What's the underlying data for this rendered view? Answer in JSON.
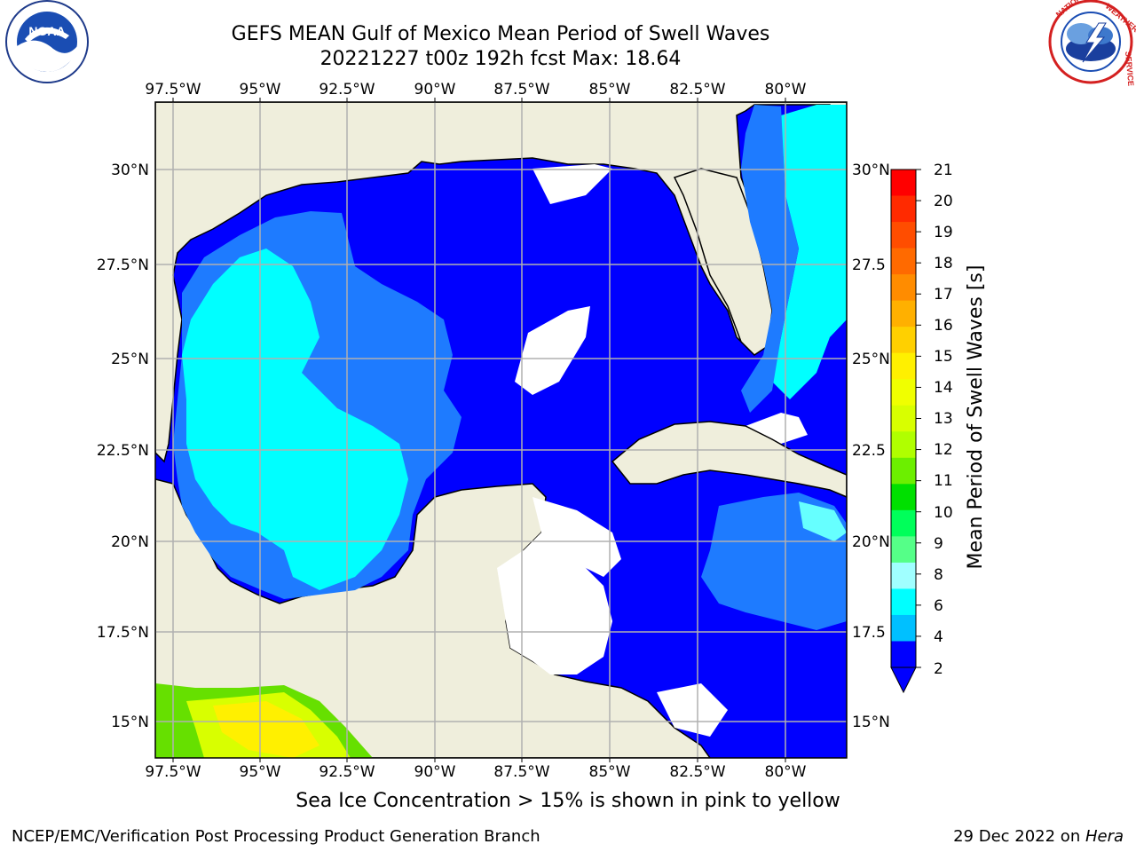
{
  "title": {
    "line1": "GEFS MEAN Gulf of Mexico Mean Period of Swell Waves",
    "line2": "20221227 t00z 192h fcst   Max: 18.64"
  },
  "logos": {
    "noaa_text": "NOAA",
    "noaa_ring": "NATIONAL OCEANIC AND ATMOSPHERIC ADMINISTRATION · U.S. DEPARTMENT OF COMMERCE",
    "nws_ring": "NATIONAL WEATHER SERVICE"
  },
  "axes": {
    "lon_labels": [
      "97.5°W",
      "95°W",
      "92.5°W",
      "90°W",
      "87.5°W",
      "85°W",
      "82.5°W",
      "80°W"
    ],
    "lat_labels_left": [
      "30°N",
      "27.5°N",
      "25°N",
      "22.5°N",
      "20°N",
      "17.5°N",
      "15°N"
    ],
    "lat_labels_right": [
      "30°N",
      "27.5",
      "25°N",
      "22.5",
      "20°N",
      "17.5",
      "15°N"
    ]
  },
  "colorbar": {
    "label": "Mean Period of Swell Waves [s]",
    "ticks": [
      "21",
      "20",
      "19",
      "18",
      "17",
      "16",
      "15",
      "14",
      "13",
      "12",
      "11",
      "10",
      "9",
      "8",
      "6",
      "4",
      "2"
    ],
    "colors": [
      "#ff0000",
      "#ff2a00",
      "#ff4d00",
      "#ff6a00",
      "#ff8c00",
      "#ffb000",
      "#ffd000",
      "#fff000",
      "#f0ff00",
      "#d8ff00",
      "#b0ff00",
      "#6cef00",
      "#00e000",
      "#00ff5a",
      "#55ff88",
      "#a0ffff",
      "#00ffff",
      "#00c0ff",
      "#0000ff"
    ],
    "extend_color": "#0000ff"
  },
  "legend_colors": {
    "land": "#efeedc",
    "dark_blue": "#0000ff",
    "mid_blue": "#1e7bff",
    "cyan": "#00ffff",
    "light_cyan": "#66ffff"
  },
  "caption": "Sea Ice Concentration > 15% is shown in pink to yellow",
  "footer": {
    "left": "NCEP/EMC/Verification Post Processing Product Generation Branch",
    "right_prefix": "29 Dec 2022 on ",
    "right_host": "Hera"
  }
}
